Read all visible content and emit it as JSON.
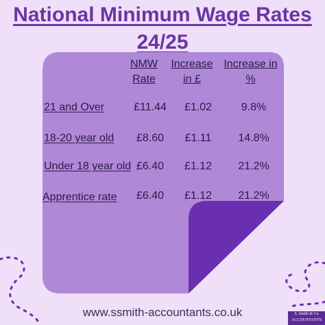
{
  "title": {
    "line1": "National Minimum Wage Rates",
    "line2": "24/25"
  },
  "table": {
    "headers": [
      {
        "line1": "NMW",
        "line2": "Rate"
      },
      {
        "line1": "Increase",
        "line2": "in £"
      },
      {
        "line1": "Increase in",
        "line2": "%"
      }
    ],
    "rows": [
      {
        "label": "21 and Over",
        "rate": "£11.44",
        "inc_gbp": "£1.02",
        "inc_pct": "9.8%"
      },
      {
        "label": "18-20 year old",
        "rate": "£8.60",
        "inc_gbp": "£1.11",
        "inc_pct": "14.8%"
      },
      {
        "label": "Under 18 year old",
        "rate": "£6.40",
        "inc_gbp": "£1.12",
        "inc_pct": "21.2%"
      },
      {
        "label": "Apprentice rate",
        "rate": "£6.40",
        "inc_gbp": "£1.12",
        "inc_pct": "21.2%"
      }
    ]
  },
  "footer": {
    "url": "www.ssmith-accountants.co.uk"
  },
  "logo": {
    "line1": "S. Smith & Co",
    "line2": "ACCOUNTANTS"
  },
  "colors": {
    "background": "#efdff8",
    "card": "#b088d8",
    "fold": "#6a2fb0",
    "title": "#6a35a5"
  }
}
